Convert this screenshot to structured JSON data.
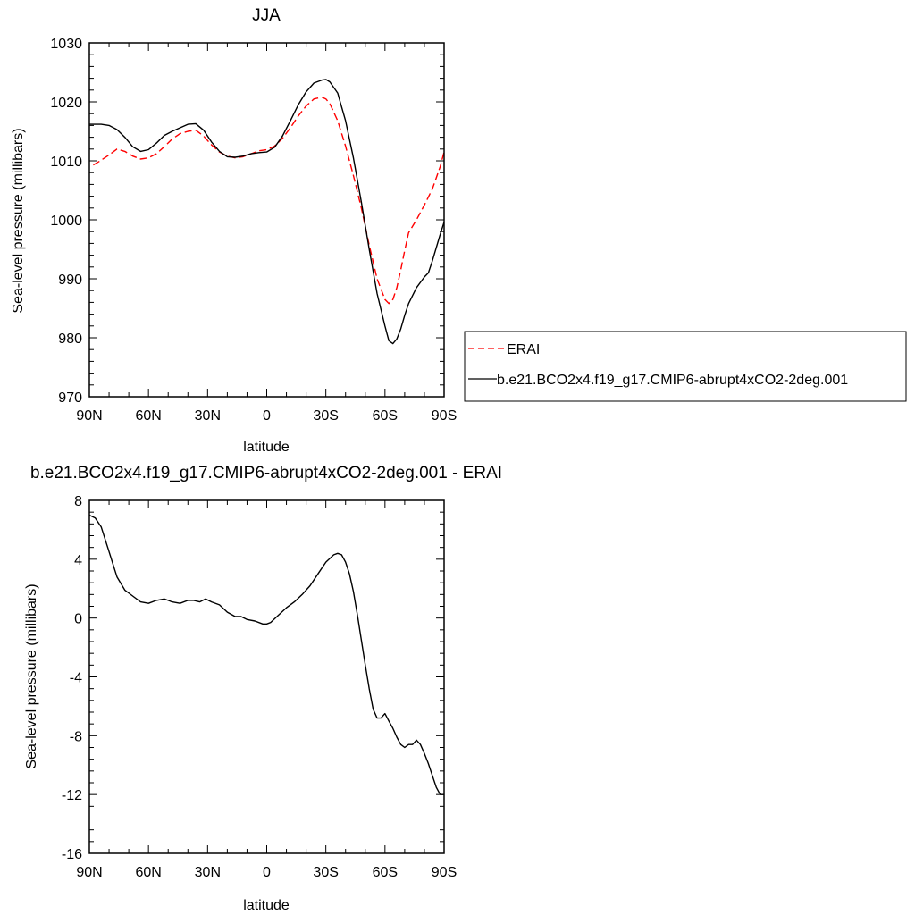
{
  "chart_data": [
    {
      "type": "line",
      "title": "JJA",
      "xlabel": "latitude",
      "ylabel": "Sea-level pressure (millibars)",
      "xlim": [
        90,
        -90
      ],
      "ylim": [
        970,
        1030
      ],
      "xticks": [
        90,
        60,
        30,
        0,
        -30,
        -60,
        -90
      ],
      "xticklabels": [
        "90N",
        "60N",
        "30N",
        "0",
        "30S",
        "60S",
        "90S"
      ],
      "yticks": [
        970,
        980,
        990,
        1000,
        1010,
        1020,
        1030
      ],
      "yticklabels": [
        "970",
        "980",
        "990",
        "1000",
        "1010",
        "1020",
        "1030"
      ],
      "legend": "right",
      "series": [
        {
          "name": "ERAI",
          "color": "#ff0000",
          "dash": "dashed",
          "x": [
            88,
            85,
            80,
            76,
            72,
            68,
            64,
            60,
            56,
            52,
            48,
            44,
            40,
            36,
            32,
            28,
            24,
            20,
            16,
            12,
            8,
            4,
            0,
            -4,
            -8,
            -12,
            -16,
            -20,
            -24,
            -28,
            -30,
            -32,
            -36,
            -40,
            -44,
            -48,
            -52,
            -56,
            -60,
            -62,
            -64,
            -66,
            -68,
            -70,
            -72,
            -76,
            -80,
            -84,
            -88,
            -90
          ],
          "y": [
            1009.3,
            1009.9,
            1011.0,
            1012.0,
            1011.6,
            1010.8,
            1010.3,
            1010.5,
            1011.2,
            1012.4,
            1013.7,
            1014.6,
            1015.0,
            1015.2,
            1014.2,
            1012.7,
            1011.5,
            1010.8,
            1010.5,
            1010.7,
            1011.2,
            1011.7,
            1011.9,
            1012.5,
            1013.8,
            1015.6,
            1017.6,
            1019.3,
            1020.5,
            1020.8,
            1020.5,
            1019.7,
            1016.8,
            1012.5,
            1007.5,
            1002.0,
            995.7,
            990.0,
            986.5,
            985.8,
            986.5,
            988.5,
            991.5,
            994.8,
            997.8,
            1000.0,
            1002.5,
            1005.2,
            1009.0,
            1011.5
          ]
        },
        {
          "name": "b.e21.BCO2x4.f19_g17.CMIP6-abrupt4xCO2-2deg.001",
          "color": "#000000",
          "dash": "solid",
          "x": [
            90,
            84,
            80,
            76,
            72,
            68,
            64,
            60,
            56,
            52,
            48,
            44,
            40,
            36,
            32,
            28,
            24,
            20,
            16,
            12,
            8,
            4,
            0,
            -4,
            -8,
            -12,
            -16,
            -20,
            -24,
            -28,
            -30,
            -32,
            -36,
            -40,
            -44,
            -48,
            -52,
            -56,
            -60,
            -62,
            -64,
            -66,
            -68,
            -70,
            -72,
            -76,
            -80,
            -82,
            -84,
            -88,
            -90
          ],
          "y": [
            1016.2,
            1016.2,
            1016.0,
            1015.3,
            1014.0,
            1012.4,
            1011.6,
            1011.9,
            1013.0,
            1014.3,
            1015.0,
            1015.6,
            1016.2,
            1016.3,
            1015.2,
            1013.2,
            1011.6,
            1010.7,
            1010.6,
            1010.8,
            1011.2,
            1011.4,
            1011.5,
            1012.3,
            1014.2,
            1016.8,
            1019.5,
            1021.7,
            1023.2,
            1023.7,
            1023.8,
            1023.4,
            1021.5,
            1016.8,
            1010.5,
            1003.0,
            995.0,
            987.5,
            982.0,
            979.5,
            979.0,
            979.8,
            981.5,
            983.8,
            985.8,
            988.5,
            990.3,
            991.0,
            993.0,
            997.5,
            999.6
          ]
        }
      ]
    },
    {
      "type": "line",
      "title": "b.e21.BCO2x4.f19_g17.CMIP6-abrupt4xCO2-2deg.001 - ERAI",
      "xlabel": "latitude",
      "ylabel": "Sea-level pressure (millibars)",
      "xlim": [
        90,
        -90
      ],
      "ylim": [
        -16,
        8
      ],
      "xticks": [
        90,
        60,
        30,
        0,
        -30,
        -60,
        -90
      ],
      "xticklabels": [
        "90N",
        "60N",
        "30N",
        "0",
        "30S",
        "60S",
        "90S"
      ],
      "yticks": [
        -16,
        -12,
        -8,
        -4,
        0,
        4,
        8
      ],
      "yticklabels": [
        "-16",
        "-12",
        "-8",
        "-4",
        "0",
        "4",
        "8"
      ],
      "series": [
        {
          "color": "#000000",
          "dash": "solid",
          "x": [
            90,
            87,
            84,
            80,
            76,
            72,
            68,
            64,
            60,
            56,
            52,
            50,
            48,
            44,
            40,
            37,
            34,
            31,
            28,
            24,
            20,
            16,
            13,
            10,
            6,
            2,
            0,
            -2,
            -6,
            -10,
            -14,
            -18,
            -22,
            -26,
            -30,
            -34,
            -36,
            -38,
            -40,
            -42,
            -44,
            -46,
            -48,
            -50,
            -52,
            -54,
            -56,
            -58,
            -60,
            -62,
            -64,
            -66,
            -68,
            -70,
            -72,
            -74,
            -76,
            -78,
            -80,
            -82,
            -84,
            -86,
            -88,
            -90
          ],
          "y": [
            7.0,
            6.8,
            6.2,
            4.5,
            2.8,
            1.9,
            1.5,
            1.1,
            1.0,
            1.2,
            1.3,
            1.2,
            1.1,
            1.0,
            1.2,
            1.2,
            1.1,
            1.3,
            1.1,
            0.9,
            0.4,
            0.1,
            0.1,
            -0.1,
            -0.2,
            -0.4,
            -0.4,
            -0.3,
            0.2,
            0.7,
            1.1,
            1.6,
            2.2,
            3.0,
            3.8,
            4.3,
            4.4,
            4.3,
            3.8,
            3.0,
            1.8,
            0.2,
            -1.5,
            -3.2,
            -4.8,
            -6.2,
            -6.8,
            -6.8,
            -6.5,
            -7.0,
            -7.5,
            -8.1,
            -8.6,
            -8.8,
            -8.6,
            -8.6,
            -8.3,
            -8.6,
            -9.2,
            -9.9,
            -10.7,
            -11.5,
            -12.0,
            -12.0
          ]
        }
      ]
    }
  ]
}
